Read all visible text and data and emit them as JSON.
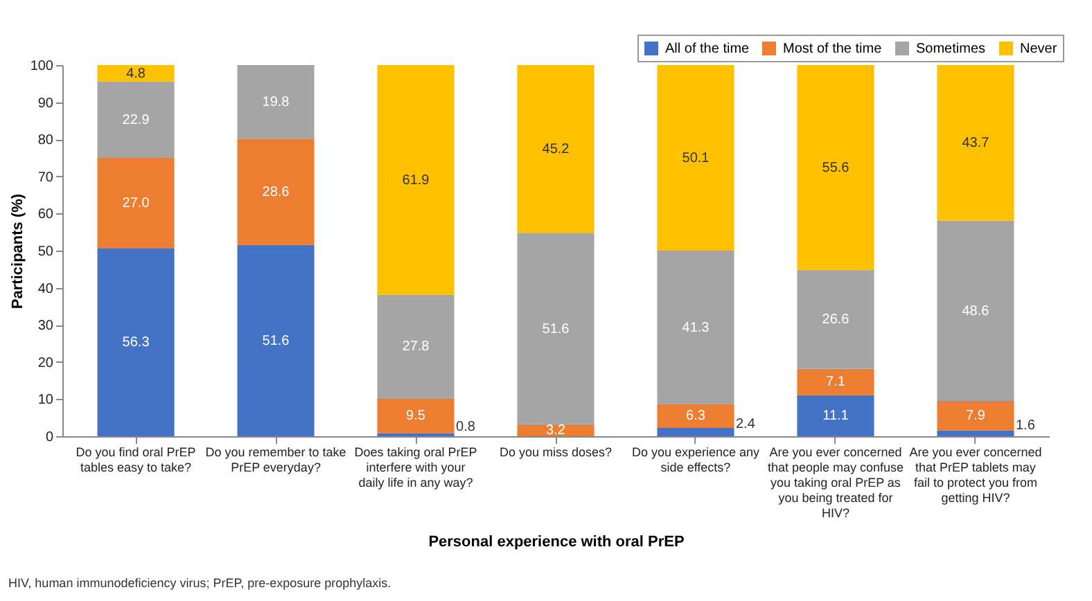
{
  "chart_data": {
    "type": "bar",
    "stacked": true,
    "xlabel": "Personal experience with oral PrEP",
    "ylabel": "Participants (%)",
    "categories": [
      "Do you find oral PrEP tables easy to take?",
      "Do you remember to take PrEP everyday?",
      "Does taking oral PrEP interfere with your daily life in any way?",
      "Do you miss doses?",
      "Do you experience any side effects?",
      "Are you ever concerned that people may confuse you taking oral PrEP as you being treated for HIV?",
      "Are you ever concerned that PrEP tablets may fail to protect you from getting HIV?"
    ],
    "series": [
      {
        "name": "All of the time",
        "color": "#4472c4",
        "values": [
          50.7,
          51.6,
          0.8,
          null,
          2.4,
          11.1,
          1.6
        ],
        "value_labels": [
          null,
          "51.6",
          "0.8",
          null,
          "2.4",
          "11.1",
          "1.6"
        ]
      },
      {
        "name": "Most of the time",
        "color": "#ed7d31",
        "values": [
          24.3,
          28.6,
          9.5,
          3.2,
          6.3,
          7.1,
          7.9
        ],
        "value_labels": [
          null,
          "28.6",
          "9.5",
          "3.2",
          "6.3",
          "7.1",
          "7.9"
        ]
      },
      {
        "name": "Sometimes",
        "color": "#a5a5a5",
        "values": [
          20.6,
          19.8,
          27.8,
          51.6,
          41.3,
          26.6,
          48.6
        ],
        "value_labels": [
          null,
          "19.8",
          "27.8",
          "51.6",
          "41.3",
          "26.6",
          "48.6"
        ]
      },
      {
        "name": "Never",
        "color": "#ffc000",
        "values": [
          4.4,
          null,
          61.9,
          45.2,
          50.0,
          55.2,
          41.9
        ],
        "value_labels": [
          null,
          null,
          "61.9",
          "45.2",
          null,
          null,
          null
        ]
      }
    ],
    "ylim": [
      0,
      100
    ],
    "yticks": [
      0,
      10,
      20,
      30,
      40,
      50,
      60,
      70,
      80,
      90,
      100
    ],
    "grid": false,
    "legend": "top right",
    "annotations": [
      "HIV, human immunodeficiency virus; PrEP, pre-exposure prophylaxis.",
      "56.3",
      "27.0",
      "22.9",
      "4.8",
      "50.1",
      "55.6",
      "43.7"
    ]
  }
}
